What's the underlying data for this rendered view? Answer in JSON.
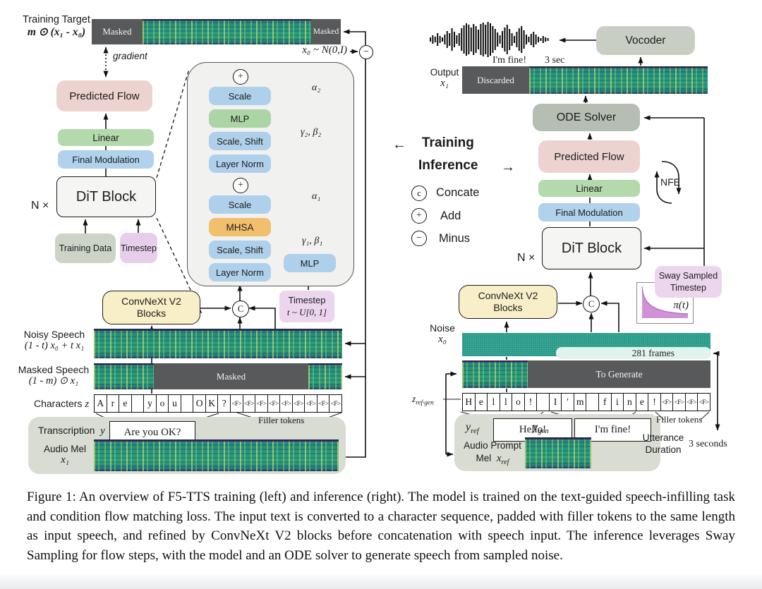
{
  "left": {
    "training_target": {
      "label": "Training Target",
      "math": "m ⊙ (x₁ - x₀)",
      "masked_left": "Masked",
      "masked_right": "Masked"
    },
    "gradient_label": "gradient",
    "x0_dist": "x₀ ~ N(0,I)",
    "predicted_flow": "Predicted Flow",
    "linear": "Linear",
    "final_modulation": "Final Modulation",
    "dit_block": "DiT Block",
    "n_times": "N ×",
    "training_data": "Training Data",
    "timestep": "Timestep",
    "concat_c": "C",
    "plus": "+",
    "detail": {
      "scale2": "Scale",
      "alpha2": "α₂",
      "mlp_top": "MLP",
      "scale_shift2": "Scale, Shift",
      "gamma_beta2": "γ₂, β₂",
      "layer_norm2": "Layer Norm",
      "scale1": "Scale",
      "alpha1": "α₁",
      "mhsa": "MHSA",
      "scale_shift1": "Scale, Shift",
      "gamma_beta1": "γ₁, β₁",
      "layer_norm1": "Layer Norm",
      "mlp_right": "MLP"
    },
    "convnext": {
      "line1": "ConvNeXt V2",
      "line2": "Blocks"
    },
    "timestep_box": {
      "line1": "Timestep",
      "line2": "t ~ U[0, 1]"
    },
    "noisy_speech": {
      "label": "Noisy Speech",
      "math": "(1 - t) x₀ + t x₁"
    },
    "masked_speech": {
      "label": "Masked Speech",
      "math": "(1 - m) ⊙ x₁",
      "masked": "Masked"
    },
    "characters": {
      "label": "Characters",
      "symbol": "z",
      "cells": [
        "A",
        "r",
        "e",
        "",
        "y",
        "o",
        "u",
        "",
        "O",
        "K",
        "?",
        "<F>",
        "<F>",
        "<F>",
        "<F>",
        "<F>",
        "<F>",
        "<F>",
        "<F>",
        "<F>"
      ]
    },
    "filler_tokens": "Filler tokens",
    "transcription": {
      "label": "Transcription",
      "symbol": "y",
      "text": "Are you OK?"
    },
    "audio_mel": {
      "label": "Audio Mel",
      "symbol": "x₁"
    },
    "minus": "−"
  },
  "legend": {
    "training_arrow": "←",
    "training": "Training",
    "inference": "Inference",
    "inference_arrow": "→",
    "concat_symbol": "c",
    "concat": "Concate",
    "add_symbol": "+",
    "add": "Add",
    "minus_symbol": "−",
    "minus": "Minus"
  },
  "right": {
    "speech_text": "I'm fine!",
    "speech_dur": "3 sec",
    "vocoder": "Vocoder",
    "output": {
      "label": "Output",
      "symbol": "x₁",
      "discarded": "Discarded"
    },
    "ode_solver": "ODE Solver",
    "predicted_flow": "Predicted Flow",
    "linear": "Linear",
    "final_modulation": "Final Modulation",
    "nfe": "NFE",
    "dit_block": "DiT Block",
    "n_times": "N ×",
    "concat_c": "C",
    "sway": {
      "line1": "Sway Sampled",
      "line2": "Timestep",
      "pi": "π(t)"
    },
    "convnext": {
      "line1": "ConvNeXt V2",
      "line2": "Blocks"
    },
    "noise": {
      "label": "Noise",
      "symbol": "x₀"
    },
    "frames": "281 frames",
    "to_generate": "To Generate",
    "characters": {
      "symbol_main": "z",
      "symbol_sub": "ref·gen",
      "cells": [
        "H",
        "e",
        "l",
        "l",
        "o",
        "!",
        "",
        "I",
        "'",
        "m",
        "",
        "f",
        "i",
        "n",
        "e",
        "!",
        "<F>",
        "<F>",
        "<F>",
        "<F>"
      ]
    },
    "filler_tokens": "Filler tokens",
    "y_ref": {
      "main": "y",
      "sub": "ref",
      "text": "Hello!"
    },
    "y_gen": {
      "main": "y",
      "sub": "gen",
      "text": "I'm fine!"
    },
    "audio_prompt": {
      "line1": "Audio Prompt",
      "line2": "Mel",
      "symbol_main": "x",
      "symbol_sub": "ref"
    },
    "utterance": {
      "line1": "Utterance",
      "line2": "Duration",
      "value": "3 seconds"
    }
  },
  "caption": "Figure 1: An overview of F5-TTS training (left) and inference (right). The model is trained on the text-guided speech-infilling task and condition flow matching loss. The input text is converted to a character sequence, padded with filler tokens to the same length as input speech, and refined by ConvNeXt V2 blocks before concatenation with speech input. The inference leverages Sway Sampling for flow steps, with the model and an ODE solver to generate speech from sampled noise."
}
